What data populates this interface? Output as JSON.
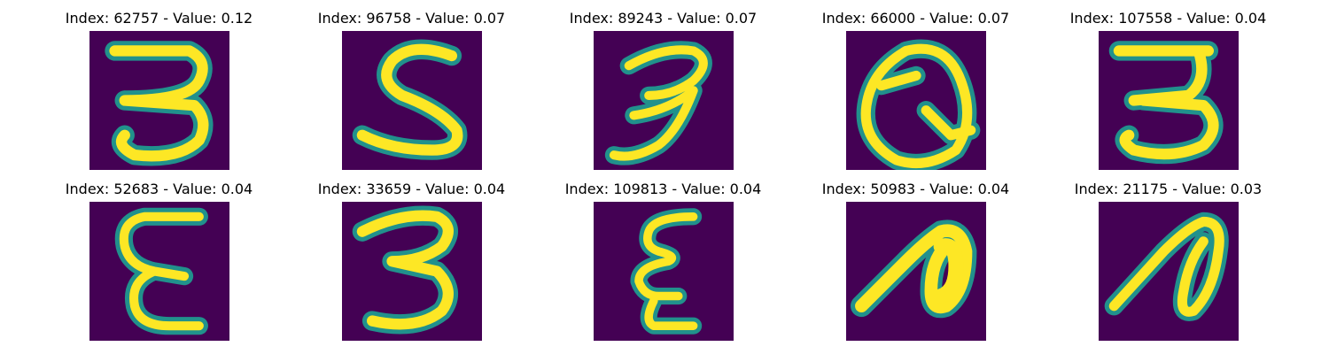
{
  "panels": [
    {
      "title": "Index: 62757 - Value: 0.12",
      "glyph": "digit-3-icon"
    },
    {
      "title": "Index: 96758 - Value: 0.07",
      "glyph": "letter-s-icon"
    },
    {
      "title": "Index: 89243 - Value: 0.07",
      "glyph": "digit-3-icon"
    },
    {
      "title": "Index: 66000 - Value: 0.07",
      "glyph": "letter-q-icon"
    },
    {
      "title": "Index: 107558 - Value: 0.04",
      "glyph": "digit-3-icon"
    },
    {
      "title": "Index: 52683 - Value: 0.04",
      "glyph": "letter-e-icon"
    },
    {
      "title": "Index: 33659 - Value: 0.04",
      "glyph": "digit-3-icon"
    },
    {
      "title": "Index: 109813 - Value: 0.04",
      "glyph": "epsilon-icon"
    },
    {
      "title": "Index: 50983 - Value: 0.04",
      "glyph": "letter-n-icon"
    },
    {
      "title": "Index: 21175 - Value: 0.03",
      "glyph": "letter-n-icon"
    }
  ],
  "colors": {
    "background": "#440154",
    "stroke": "#fde725",
    "edge": "#21918c"
  }
}
